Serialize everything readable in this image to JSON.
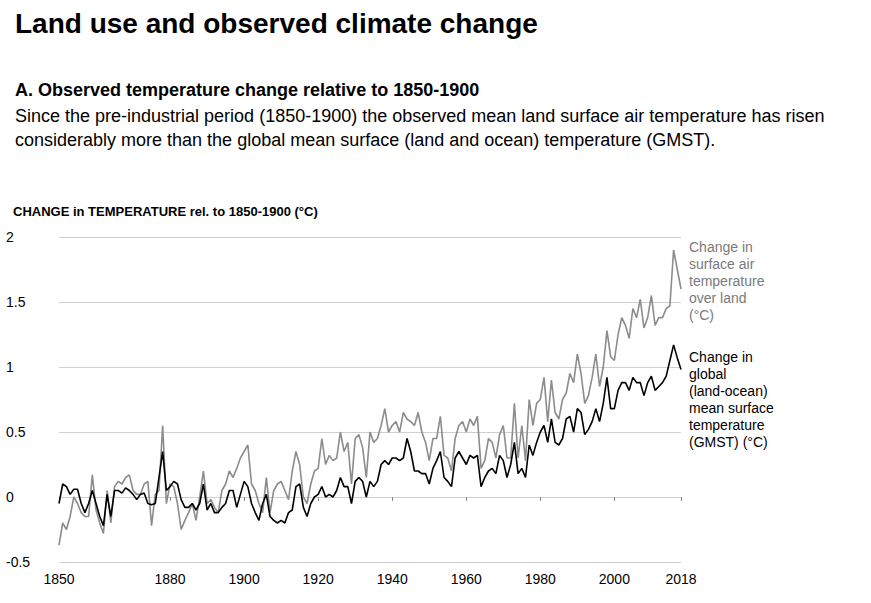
{
  "chart_data": {
    "type": "line",
    "title": "Land use and observed climate change",
    "subtitle": "A. Observed temperature change relative to 1850-1900",
    "caption": "Since the pre-industrial period (1850-1900) the observed mean land surface air temperature has risen considerably more than the global mean surface (land and ocean) temperature (GMST).",
    "ylabel": "CHANGE in TEMPERATURE rel. to 1850-1900 (°C)",
    "x": [
      1850,
      1851,
      1852,
      1853,
      1854,
      1855,
      1856,
      1857,
      1858,
      1859,
      1860,
      1861,
      1862,
      1863,
      1864,
      1865,
      1866,
      1867,
      1868,
      1869,
      1870,
      1871,
      1872,
      1873,
      1874,
      1875,
      1876,
      1877,
      1878,
      1879,
      1880,
      1881,
      1882,
      1883,
      1884,
      1885,
      1886,
      1887,
      1888,
      1889,
      1890,
      1891,
      1892,
      1893,
      1894,
      1895,
      1896,
      1897,
      1898,
      1899,
      1900,
      1901,
      1902,
      1903,
      1904,
      1905,
      1906,
      1907,
      1908,
      1909,
      1910,
      1911,
      1912,
      1913,
      1914,
      1915,
      1916,
      1917,
      1918,
      1919,
      1920,
      1921,
      1922,
      1923,
      1924,
      1925,
      1926,
      1927,
      1928,
      1929,
      1930,
      1931,
      1932,
      1933,
      1934,
      1935,
      1936,
      1937,
      1938,
      1939,
      1940,
      1941,
      1942,
      1943,
      1944,
      1945,
      1946,
      1947,
      1948,
      1949,
      1950,
      1951,
      1952,
      1953,
      1954,
      1955,
      1956,
      1957,
      1958,
      1959,
      1960,
      1961,
      1962,
      1963,
      1964,
      1965,
      1966,
      1967,
      1968,
      1969,
      1970,
      1971,
      1972,
      1973,
      1974,
      1975,
      1976,
      1977,
      1978,
      1979,
      1980,
      1981,
      1982,
      1983,
      1984,
      1985,
      1986,
      1987,
      1988,
      1989,
      1990,
      1991,
      1992,
      1993,
      1994,
      1995,
      1996,
      1997,
      1998,
      1999,
      2000,
      2001,
      2002,
      2003,
      2004,
      2005,
      2006,
      2007,
      2008,
      2009,
      2010,
      2011,
      2012,
      2013,
      2014,
      2015,
      2016,
      2017,
      2018
    ],
    "series": [
      {
        "name": "Change in surface air temperature over land (°C)",
        "color": "#8c8c8c",
        "values": [
          -0.37,
          -0.2,
          -0.25,
          -0.15,
          0.0,
          -0.05,
          -0.12,
          -0.15,
          -0.15,
          0.17,
          -0.1,
          -0.2,
          -0.28,
          0.05,
          -0.2,
          0.08,
          0.12,
          0.1,
          0.15,
          0.17,
          0.05,
          0.02,
          0.02,
          0.1,
          0.12,
          -0.22,
          0.02,
          0.05,
          0.55,
          -0.05,
          0.1,
          0.08,
          -0.05,
          -0.25,
          -0.18,
          -0.12,
          -0.05,
          -0.18,
          0.0,
          0.2,
          -0.05,
          -0.02,
          -0.08,
          -0.12,
          0.05,
          0.1,
          0.2,
          0.15,
          0.22,
          0.3,
          0.35,
          0.4,
          0.1,
          0.05,
          -0.05,
          -0.12,
          0.15,
          -0.12,
          0.05,
          0.1,
          0.12,
          0.05,
          -0.02,
          0.2,
          0.35,
          0.25,
          0.0,
          -0.05,
          0.1,
          0.2,
          0.22,
          0.45,
          0.25,
          0.32,
          0.28,
          0.3,
          0.5,
          0.35,
          0.42,
          0.1,
          0.45,
          0.48,
          0.38,
          0.15,
          0.5,
          0.42,
          0.45,
          0.55,
          0.68,
          0.5,
          0.55,
          0.58,
          0.5,
          0.65,
          0.6,
          0.58,
          0.55,
          0.65,
          0.5,
          0.42,
          0.28,
          0.45,
          0.45,
          0.62,
          0.32,
          0.3,
          0.2,
          0.45,
          0.55,
          0.58,
          0.5,
          0.6,
          0.55,
          0.62,
          0.22,
          0.28,
          0.45,
          0.42,
          0.3,
          0.48,
          0.55,
          0.3,
          0.3,
          0.72,
          0.3,
          0.55,
          0.28,
          0.75,
          0.55,
          0.72,
          0.75,
          0.92,
          0.58,
          0.9,
          0.65,
          0.6,
          0.75,
          0.8,
          0.95,
          0.88,
          1.1,
          0.95,
          0.72,
          0.78,
          0.92,
          1.1,
          0.85,
          1.0,
          1.28,
          1.08,
          1.05,
          1.25,
          1.38,
          1.32,
          1.22,
          1.45,
          1.38,
          1.52,
          1.3,
          1.38,
          1.55,
          1.32,
          1.38,
          1.38,
          1.45,
          1.47,
          1.9,
          1.75,
          1.6
        ]
      },
      {
        "name": "Change in global (land-ocean) mean surface temperature (GMST) (°C)",
        "color": "#000000",
        "values": [
          -0.05,
          0.1,
          0.08,
          0.02,
          0.06,
          0.06,
          -0.05,
          -0.12,
          -0.05,
          0.05,
          -0.05,
          -0.15,
          -0.22,
          0.02,
          -0.15,
          0.05,
          0.05,
          0.03,
          0.07,
          0.05,
          0.02,
          -0.02,
          0.02,
          0.03,
          -0.05,
          -0.06,
          -0.05,
          0.15,
          0.35,
          0.05,
          0.08,
          0.12,
          0.1,
          -0.02,
          -0.08,
          -0.08,
          -0.05,
          -0.1,
          -0.05,
          0.1,
          -0.1,
          -0.05,
          -0.12,
          -0.12,
          -0.08,
          -0.05,
          0.05,
          0.05,
          -0.08,
          0.02,
          0.12,
          0.08,
          -0.05,
          -0.12,
          -0.18,
          -0.05,
          0.02,
          -0.15,
          -0.18,
          -0.2,
          -0.18,
          -0.2,
          -0.12,
          -0.1,
          0.08,
          0.1,
          -0.08,
          -0.15,
          -0.05,
          0.0,
          0.02,
          0.08,
          0.0,
          0.02,
          0.0,
          0.05,
          0.15,
          0.08,
          0.08,
          -0.05,
          0.12,
          0.15,
          0.12,
          0.0,
          0.12,
          0.08,
          0.12,
          0.25,
          0.28,
          0.25,
          0.3,
          0.3,
          0.28,
          0.3,
          0.45,
          0.35,
          0.2,
          0.2,
          0.18,
          0.18,
          0.1,
          0.22,
          0.28,
          0.35,
          0.15,
          0.12,
          0.08,
          0.3,
          0.35,
          0.3,
          0.25,
          0.32,
          0.3,
          0.32,
          0.08,
          0.15,
          0.2,
          0.22,
          0.18,
          0.32,
          0.28,
          0.15,
          0.25,
          0.42,
          0.18,
          0.22,
          0.15,
          0.4,
          0.32,
          0.42,
          0.5,
          0.55,
          0.42,
          0.6,
          0.42,
          0.4,
          0.45,
          0.6,
          0.62,
          0.5,
          0.68,
          0.65,
          0.48,
          0.52,
          0.58,
          0.68,
          0.58,
          0.72,
          0.92,
          0.68,
          0.68,
          0.82,
          0.88,
          0.88,
          0.82,
          0.92,
          0.88,
          0.88,
          0.78,
          0.88,
          0.93,
          0.82,
          0.85,
          0.88,
          0.93,
          1.05,
          1.17,
          1.07,
          0.98
        ]
      }
    ],
    "xlim": [
      1850,
      2018
    ],
    "xticks": [
      1850,
      1880,
      1900,
      1920,
      1940,
      1960,
      1980,
      2000,
      2018
    ],
    "ylim": [
      -0.5,
      2
    ],
    "yticks": [
      -0.5,
      0,
      0.5,
      1,
      1.5,
      2
    ],
    "grid": true
  }
}
